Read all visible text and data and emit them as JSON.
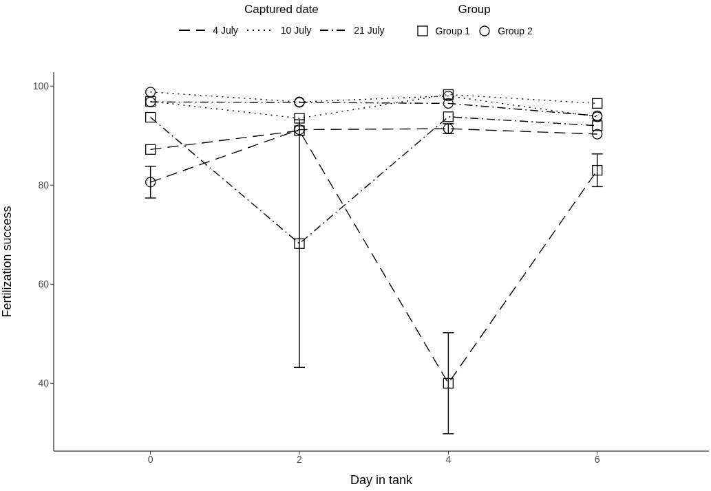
{
  "chart_data": {
    "type": "line",
    "xlabel": "Day in tank",
    "ylabel": "Fertilization success",
    "legend_title": "Captured date",
    "legend": "top",
    "x": [
      0,
      2,
      4,
      6
    ],
    "xlim": [
      -1.3,
      7.5
    ],
    "xticks": [
      0,
      2,
      4,
      6
    ],
    "ylim": [
      26.3,
      102.8
    ],
    "yticks": [
      40,
      60,
      80,
      100
    ],
    "grid": false,
    "annotations": [
      "Group",
      "Group 1",
      "Group 2"
    ],
    "series": [
      {
        "name": "4 July",
        "color": "#000000",
        "line_style": "dashed",
        "marker": "square",
        "values": [
          87.2,
          91,
          40,
          83
        ],
        "errors": [
          null,
          null,
          10.2,
          3.3
        ]
      },
      {
        "color": "#000000",
        "line_style": "dashed",
        "marker": "circle",
        "values": [
          80.6,
          91.2,
          91.4,
          90.3
        ],
        "errors": [
          3.2,
          null,
          1,
          null
        ]
      },
      {
        "name": "10 July",
        "color": "#000000",
        "line_style": "dotted",
        "marker": "square",
        "values": [
          96.9,
          93.5,
          98.3,
          96.5
        ],
        "errors": [
          null,
          null,
          null,
          null
        ]
      },
      {
        "color": "#000000",
        "line_style": "dotted",
        "marker": "circle",
        "values": [
          98.8,
          96.8,
          98,
          93.8
        ],
        "errors": [
          null,
          null,
          null,
          null
        ]
      },
      {
        "name": "21 July",
        "color": "#000000",
        "line_style": "dashdot",
        "marker": "square",
        "values": [
          93.7,
          68.2,
          93.8,
          92
        ],
        "errors": [
          null,
          25,
          null,
          null
        ]
      },
      {
        "color": "#000000",
        "line_style": "dashdot",
        "marker": "circle",
        "values": [
          96.8,
          96.7,
          96.5,
          94
        ],
        "errors": [
          null,
          null,
          null,
          null
        ]
      }
    ]
  }
}
